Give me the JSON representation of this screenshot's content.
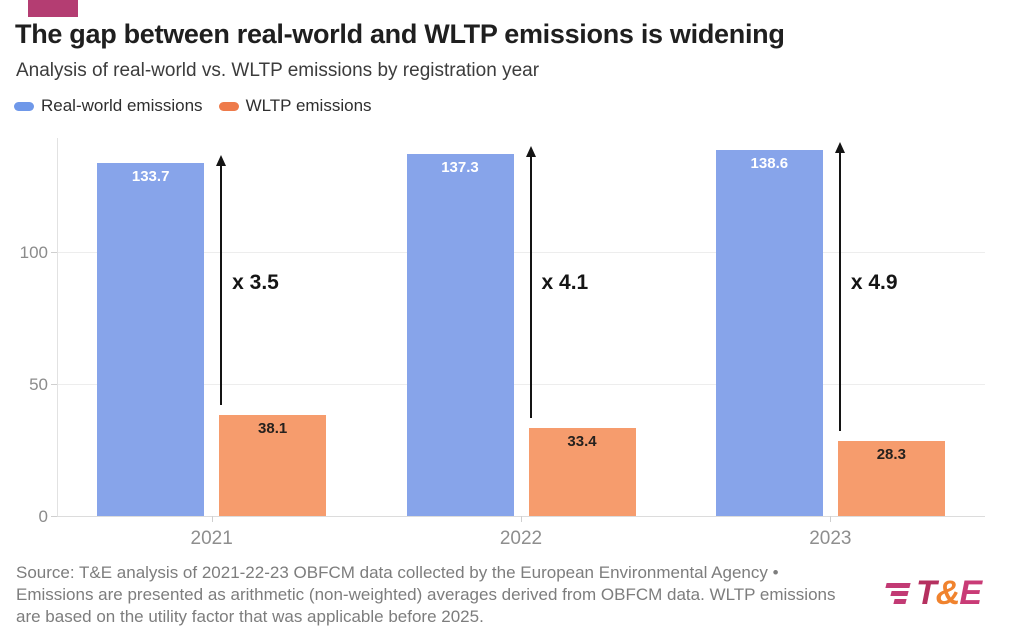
{
  "header": {
    "title": "The gap between real-world and WLTP emissions is widening",
    "subtitle": "Analysis of real-world vs. WLTP emissions by registration year"
  },
  "legend": [
    {
      "label": "Real-world emissions",
      "color": "#6f98e9"
    },
    {
      "label": "WLTP emissions",
      "color": "#ee7b4b"
    }
  ],
  "chart_data": {
    "type": "bar",
    "categories": [
      "2021",
      "2022",
      "2023"
    ],
    "series": [
      {
        "name": "Real-world emissions",
        "color": "#87a4ea",
        "label_color": "#ffffff",
        "values": [
          133.7,
          137.3,
          138.6
        ]
      },
      {
        "name": "WLTP emissions",
        "color": "#f69c6d",
        "label_color": "#26211e",
        "values": [
          38.1,
          33.4,
          28.3
        ]
      }
    ],
    "gap_multipliers": [
      "x 3.5",
      "x 4.1",
      "x 4.9"
    ],
    "yticks": [
      0,
      50,
      100
    ],
    "ylim": [
      0,
      143
    ],
    "grid": "horizontal",
    "legend_position": "top-left",
    "annotation_style": "vertical arrows from WLTP bar top to real-world bar top"
  },
  "footer": {
    "source_lines": [
      "Source: T&E analysis of 2021-22-23 OBFCM data collected by the European Environmental Agency •",
      "Emissions are presented as arithmetic (non-weighted) averages derived from OBFCM data. WLTP emissions",
      "are based on the utility factor that was applicable before 2025."
    ]
  },
  "logo": {
    "mark": "speed-lines-icon",
    "parts": [
      {
        "text": "T",
        "color": "#b5305f"
      },
      {
        "text": "&",
        "color": "#f0832e"
      },
      {
        "text": "E",
        "color": "#c93b76"
      }
    ]
  },
  "colors": {
    "brand_accent": "#b43d72",
    "arrow": "#141414",
    "grid": "#ededed",
    "axis_text": "#8b8b8b"
  }
}
